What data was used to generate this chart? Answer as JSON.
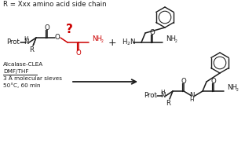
{
  "title_text": "R = Xxx amino acid side chain",
  "reaction_conditions": [
    "Alcalase-CLEA",
    "DMF/THF",
    "3 Å molecular sieves",
    "50°C, 60 min"
  ],
  "question_mark": "?",
  "red_color": "#cc0000",
  "black_color": "#1a1a1a",
  "bg_color": "#ffffff"
}
